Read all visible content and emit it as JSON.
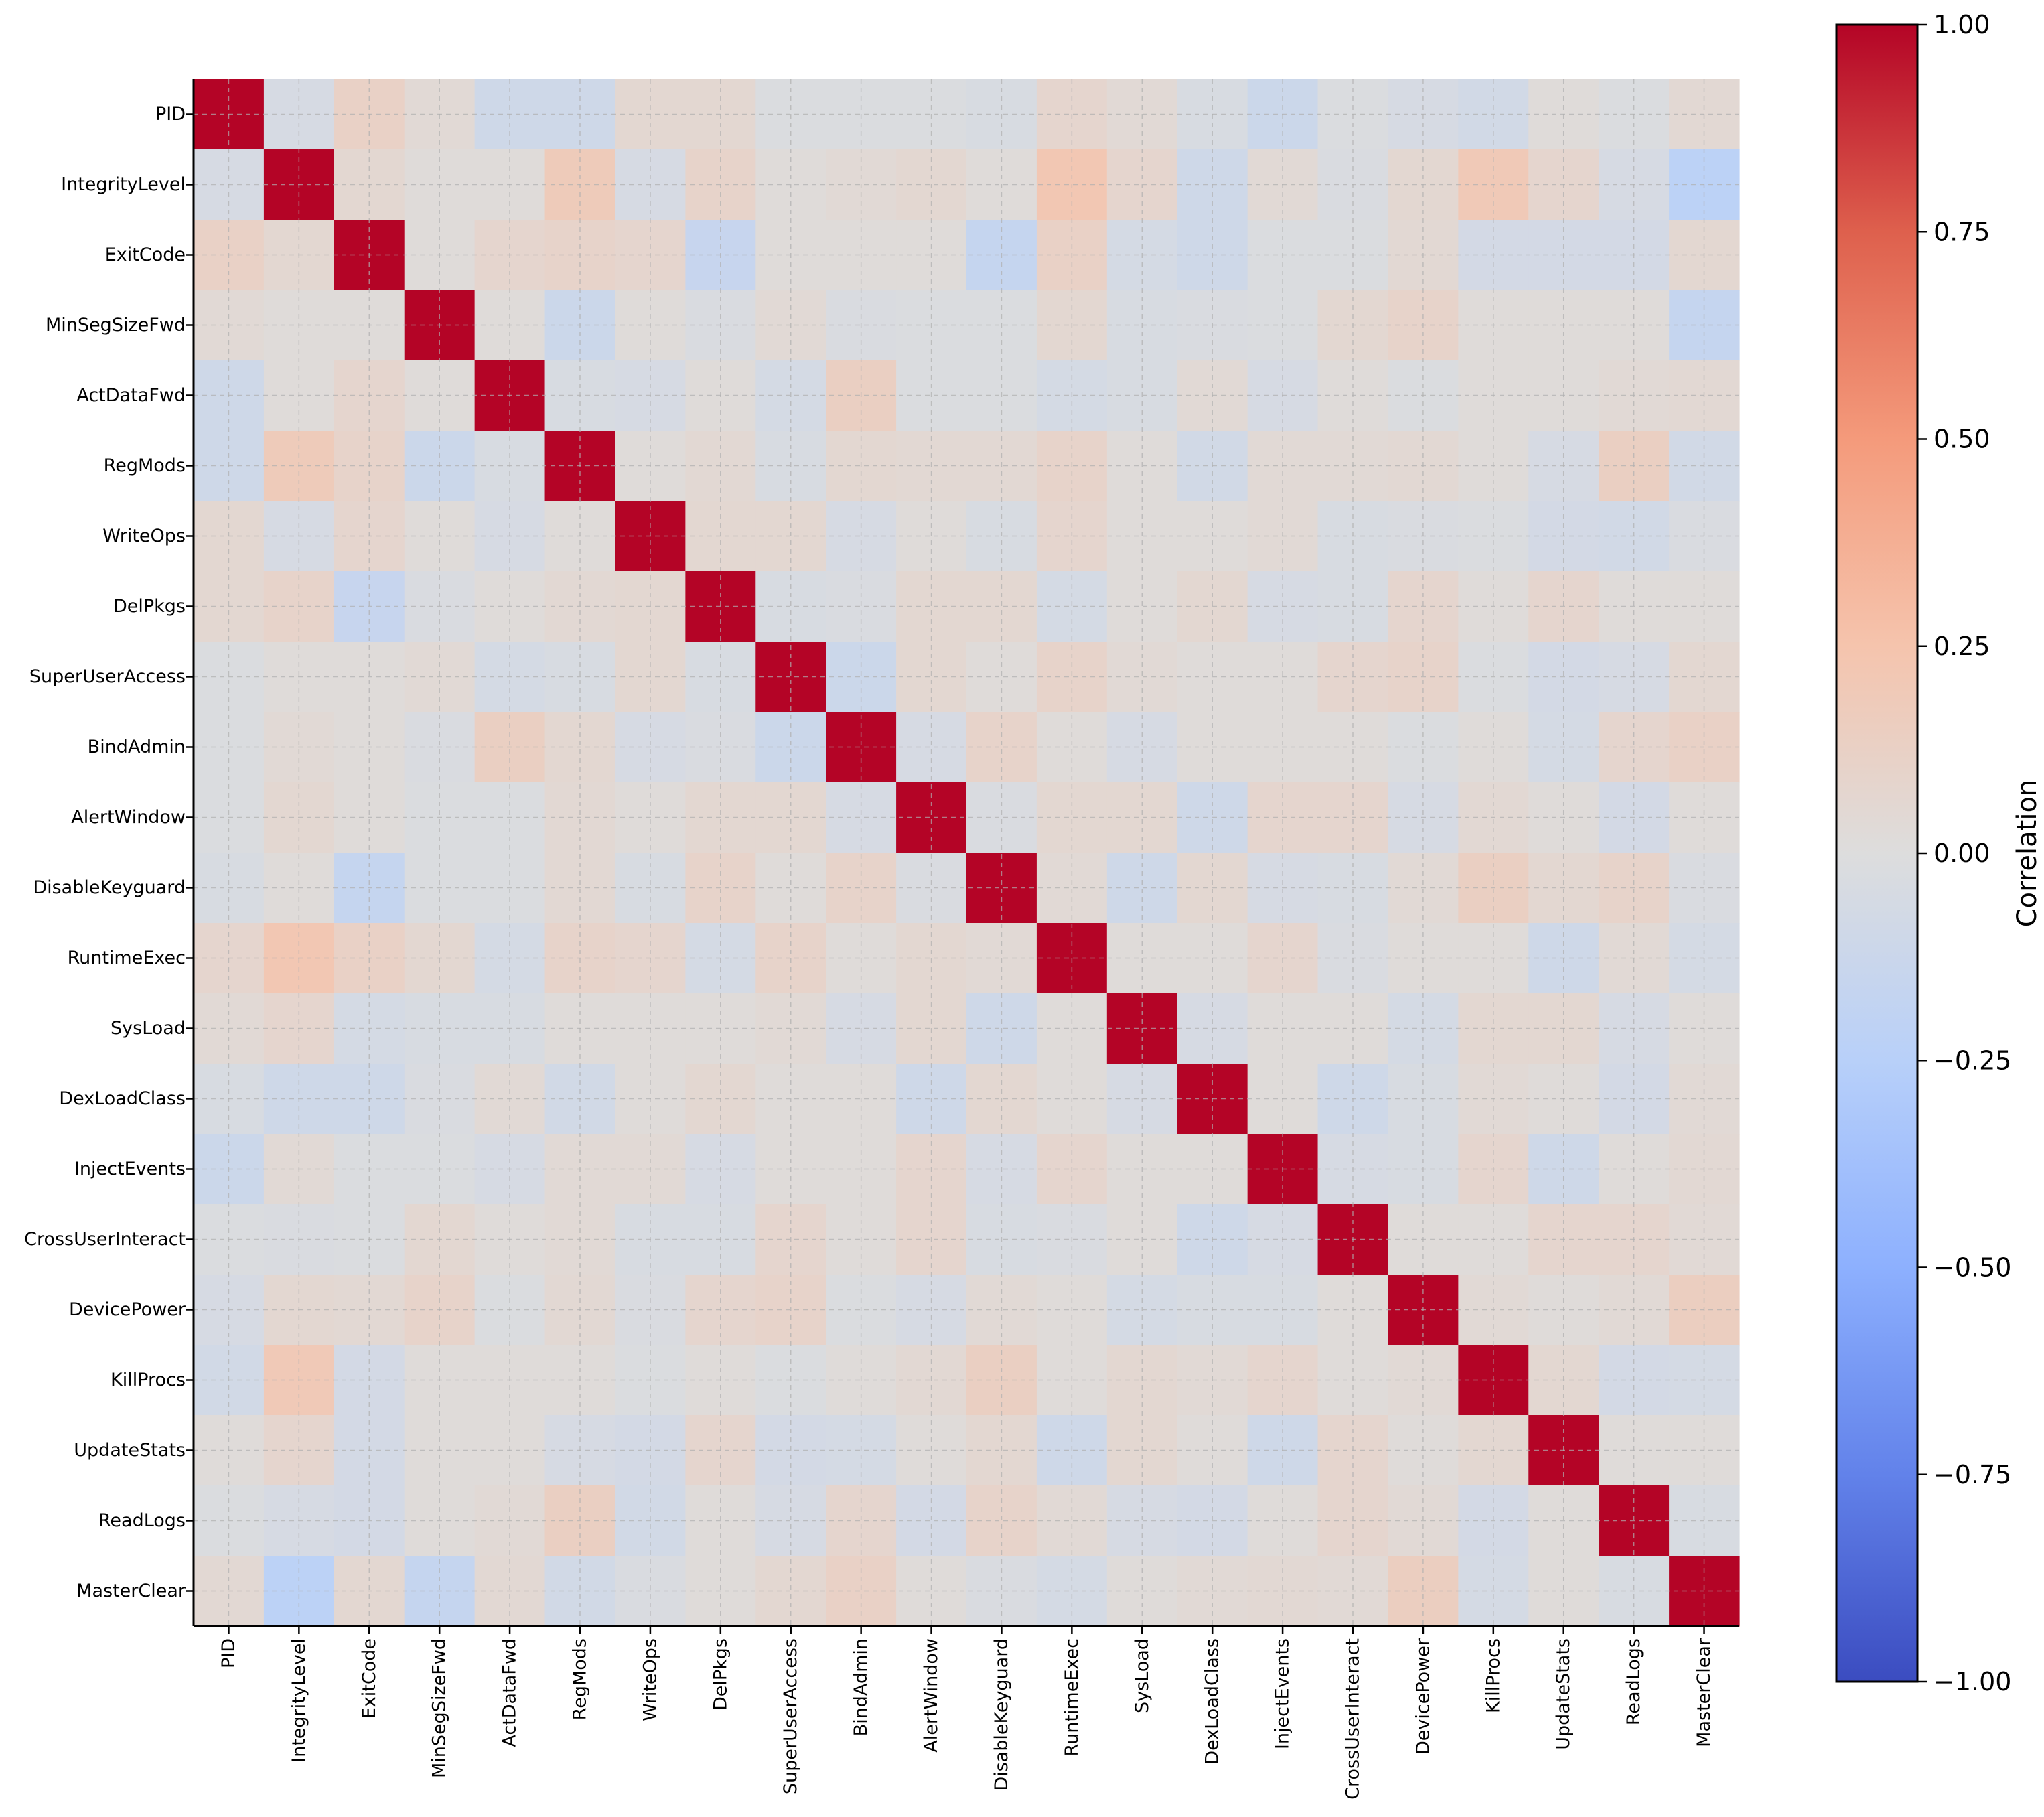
{
  "chart_data": {
    "type": "heatmap",
    "title": "",
    "xlabel": "",
    "ylabel": "",
    "labels": [
      "PID",
      "IntegrityLevel",
      "ExitCode",
      "MinSegSizeFwd",
      "ActDataFwd",
      "RegMods",
      "WriteOps",
      "DelPkgs",
      "SuperUserAccess",
      "BindAdmin",
      "AlertWindow",
      "DisableKeyguard",
      "RuntimeExec",
      "SysLoad",
      "DexLoadClass",
      "InjectEvents",
      "CrossUserInteract",
      "DevicePower",
      "KillProcs",
      "UpdateStats",
      "ReadLogs",
      "MasterClear"
    ],
    "matrix": [
      [
        1.0,
        -0.05,
        0.12,
        0.04,
        -0.1,
        -0.1,
        0.06,
        0.06,
        -0.02,
        -0.02,
        -0.02,
        -0.04,
        0.08,
        0.04,
        -0.04,
        -0.12,
        -0.02,
        -0.05,
        -0.08,
        0.02,
        -0.02,
        0.05
      ],
      [
        -0.05,
        1.0,
        0.06,
        0.02,
        0.02,
        0.18,
        -0.05,
        0.1,
        0.02,
        0.04,
        0.06,
        0.02,
        0.22,
        0.08,
        -0.1,
        0.04,
        -0.03,
        0.06,
        0.2,
        0.08,
        -0.05,
        -0.22
      ],
      [
        0.12,
        0.06,
        1.0,
        0.02,
        0.08,
        0.1,
        0.08,
        -0.15,
        0.02,
        0.02,
        0.02,
        -0.16,
        0.12,
        -0.06,
        -0.1,
        -0.02,
        -0.02,
        0.05,
        -0.07,
        -0.07,
        -0.07,
        0.06
      ],
      [
        0.04,
        0.02,
        0.02,
        1.0,
        0.02,
        -0.12,
        0.02,
        -0.03,
        0.04,
        -0.03,
        -0.02,
        -0.02,
        0.06,
        -0.04,
        -0.03,
        -0.02,
        0.06,
        0.1,
        0.02,
        0.02,
        0.02,
        -0.16
      ],
      [
        -0.1,
        0.02,
        0.08,
        0.02,
        1.0,
        -0.04,
        -0.05,
        0.02,
        -0.06,
        0.14,
        -0.02,
        -0.02,
        -0.06,
        -0.04,
        0.04,
        -0.05,
        0.02,
        -0.02,
        0.02,
        0.02,
        0.04,
        0.05
      ],
      [
        -0.1,
        0.18,
        0.1,
        -0.12,
        -0.04,
        1.0,
        0.02,
        0.05,
        -0.04,
        0.06,
        0.05,
        0.05,
        0.1,
        0.02,
        -0.08,
        0.04,
        0.04,
        0.05,
        0.02,
        -0.05,
        0.14,
        -0.08
      ],
      [
        0.06,
        -0.05,
        0.08,
        0.02,
        -0.05,
        0.02,
        1.0,
        0.06,
        0.06,
        -0.05,
        0.02,
        -0.04,
        0.08,
        0.02,
        0.02,
        0.04,
        -0.04,
        -0.03,
        -0.02,
        -0.07,
        -0.08,
        -0.03
      ],
      [
        0.06,
        0.1,
        -0.15,
        -0.03,
        0.02,
        0.05,
        0.06,
        1.0,
        -0.04,
        -0.03,
        0.06,
        0.06,
        -0.06,
        0.02,
        0.06,
        -0.05,
        -0.04,
        0.08,
        0.02,
        0.08,
        0.02,
        0.02
      ],
      [
        -0.02,
        0.02,
        0.02,
        0.04,
        -0.06,
        -0.04,
        0.06,
        -0.04,
        1.0,
        -0.12,
        0.06,
        0.02,
        0.1,
        0.04,
        0.02,
        0.02,
        0.08,
        0.1,
        -0.02,
        -0.07,
        -0.05,
        0.06
      ],
      [
        -0.02,
        0.04,
        0.02,
        -0.03,
        0.14,
        0.06,
        -0.05,
        -0.03,
        -0.12,
        1.0,
        -0.05,
        0.1,
        0.02,
        -0.05,
        0.02,
        0.02,
        0.02,
        -0.02,
        0.02,
        -0.06,
        0.08,
        0.12
      ],
      [
        -0.02,
        0.06,
        0.02,
        -0.02,
        -0.02,
        0.05,
        0.02,
        0.06,
        0.06,
        -0.05,
        1.0,
        -0.03,
        0.06,
        0.06,
        -0.1,
        0.08,
        0.08,
        -0.05,
        0.05,
        0.02,
        -0.07,
        0.02
      ],
      [
        -0.04,
        0.02,
        -0.16,
        -0.02,
        -0.02,
        0.05,
        -0.04,
        0.1,
        0.02,
        0.1,
        -0.03,
        1.0,
        0.04,
        -0.1,
        0.06,
        -0.05,
        -0.04,
        0.04,
        0.14,
        0.06,
        0.1,
        -0.03
      ],
      [
        0.08,
        0.22,
        0.12,
        0.06,
        -0.06,
        0.1,
        0.08,
        -0.06,
        0.1,
        0.02,
        0.06,
        0.04,
        1.0,
        0.02,
        0.02,
        0.08,
        -0.03,
        0.02,
        0.02,
        -0.1,
        0.04,
        -0.06
      ],
      [
        0.04,
        0.08,
        -0.06,
        -0.04,
        -0.04,
        0.02,
        0.02,
        0.02,
        0.04,
        -0.05,
        0.06,
        -0.1,
        0.02,
        1.0,
        -0.05,
        0.02,
        0.02,
        -0.06,
        0.06,
        0.06,
        -0.05,
        0.02
      ],
      [
        -0.04,
        -0.1,
        -0.1,
        -0.03,
        0.04,
        -0.08,
        0.02,
        0.06,
        0.02,
        0.02,
        -0.1,
        0.06,
        0.02,
        -0.05,
        1.0,
        0.02,
        -0.1,
        -0.04,
        0.04,
        0.02,
        -0.07,
        0.04
      ],
      [
        -0.12,
        0.04,
        -0.02,
        -0.02,
        -0.05,
        0.04,
        0.04,
        -0.05,
        0.02,
        0.02,
        0.08,
        -0.05,
        0.08,
        0.02,
        0.02,
        1.0,
        -0.05,
        -0.04,
        0.08,
        -0.1,
        0.02,
        0.05
      ],
      [
        -0.02,
        -0.03,
        -0.02,
        0.06,
        0.02,
        0.04,
        -0.04,
        -0.04,
        0.08,
        0.02,
        0.08,
        -0.04,
        -0.03,
        0.02,
        -0.1,
        -0.05,
        1.0,
        0.02,
        0.02,
        0.08,
        0.08,
        0.04
      ],
      [
        -0.05,
        0.06,
        0.05,
        0.1,
        -0.02,
        0.05,
        -0.03,
        0.08,
        0.1,
        -0.02,
        -0.05,
        0.04,
        0.02,
        -0.06,
        -0.04,
        -0.04,
        0.02,
        1.0,
        0.04,
        0.02,
        0.04,
        0.15
      ],
      [
        -0.08,
        0.2,
        -0.07,
        0.02,
        0.02,
        0.02,
        -0.02,
        0.02,
        -0.02,
        0.02,
        0.05,
        0.14,
        0.02,
        0.06,
        0.04,
        0.08,
        0.02,
        0.04,
        1.0,
        0.06,
        -0.07,
        -0.06
      ],
      [
        0.02,
        0.08,
        -0.07,
        0.02,
        0.02,
        -0.05,
        -0.07,
        0.08,
        -0.07,
        -0.06,
        0.02,
        0.06,
        -0.1,
        0.06,
        0.02,
        -0.1,
        0.08,
        0.02,
        0.06,
        1.0,
        0.02,
        0.02
      ],
      [
        -0.02,
        -0.05,
        -0.07,
        0.02,
        0.04,
        0.14,
        -0.08,
        0.02,
        -0.05,
        0.08,
        -0.07,
        0.1,
        0.04,
        -0.05,
        -0.07,
        0.02,
        0.08,
        0.04,
        -0.07,
        0.02,
        1.0,
        -0.04
      ],
      [
        0.05,
        -0.22,
        0.06,
        -0.16,
        0.05,
        -0.08,
        -0.03,
        0.02,
        0.06,
        0.12,
        0.02,
        -0.03,
        -0.06,
        0.02,
        0.04,
        0.05,
        0.04,
        0.15,
        -0.06,
        0.02,
        -0.04,
        1.0
      ]
    ],
    "colorscale": "coolwarm",
    "zlim": [
      -1.0,
      1.0
    ],
    "colorbar": {
      "label": "Correlation",
      "ticks": [
        1.0,
        0.75,
        0.5,
        0.25,
        0.0,
        -0.25,
        -0.5,
        -0.75,
        -1.0
      ],
      "tick_labels": [
        "1.00",
        "0.75",
        "0.50",
        "0.25",
        "0.00",
        "−0.25",
        "−0.50",
        "−0.75",
        "−1.00"
      ]
    },
    "grid": true,
    "grid_style": "dashed",
    "x_tick_rotation": "vertical"
  }
}
